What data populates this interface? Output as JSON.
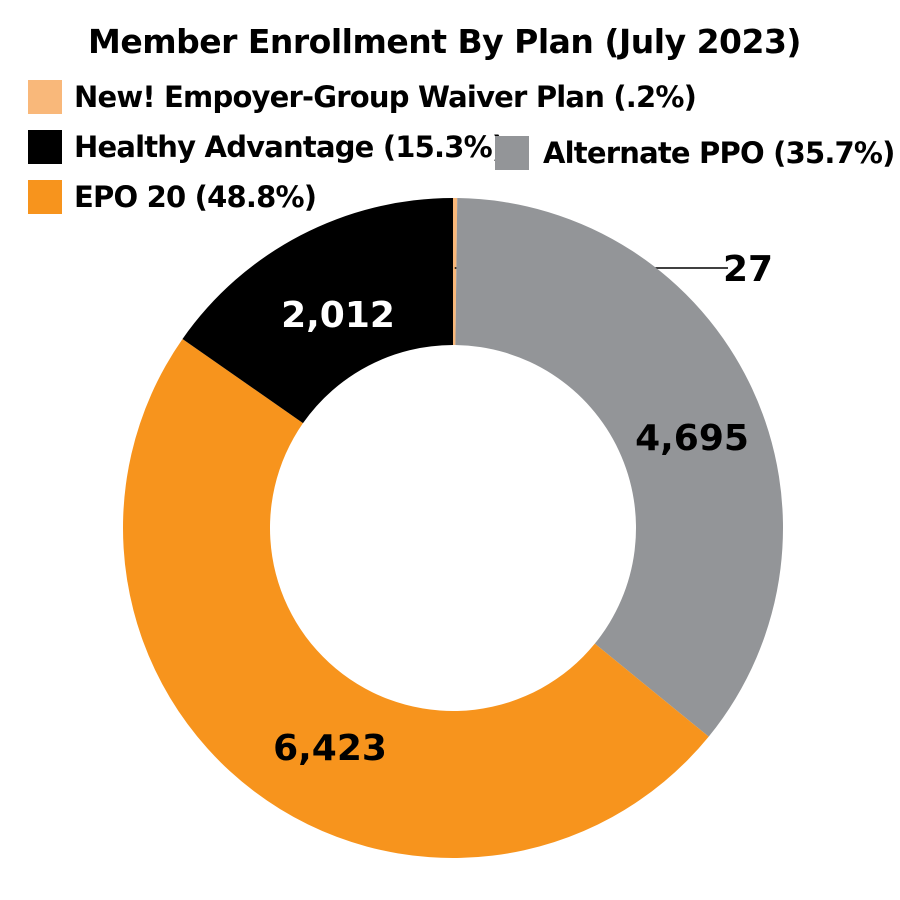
{
  "chart_data": {
    "type": "pie",
    "title": "Member Enrollment By Plan (July 2023)",
    "donut": true,
    "slices": [
      {
        "legend": "New! Empoyer-Group Waiver Plan (.2%)",
        "value": 27,
        "label": "27",
        "color": "#F9B87A",
        "label_color": "#000000"
      },
      {
        "legend": "Alternate PPO (35.7%)",
        "value": 4695,
        "label": "4,695",
        "color": "#939598",
        "label_color": "#000000"
      },
      {
        "legend": "EPO 20 (48.8%)",
        "value": 6423,
        "label": "6,423",
        "color": "#F7941D",
        "label_color": "#000000"
      },
      {
        "legend": "Healthy Advantage (15.3%)",
        "value": 2012,
        "label": "2,012",
        "color": "#000000",
        "label_color": "#FFFFFF"
      }
    ],
    "legend_order": [
      0,
      3,
      1,
      2
    ],
    "start": "top",
    "direction": "clockwise",
    "legend_placement": "top-left"
  }
}
